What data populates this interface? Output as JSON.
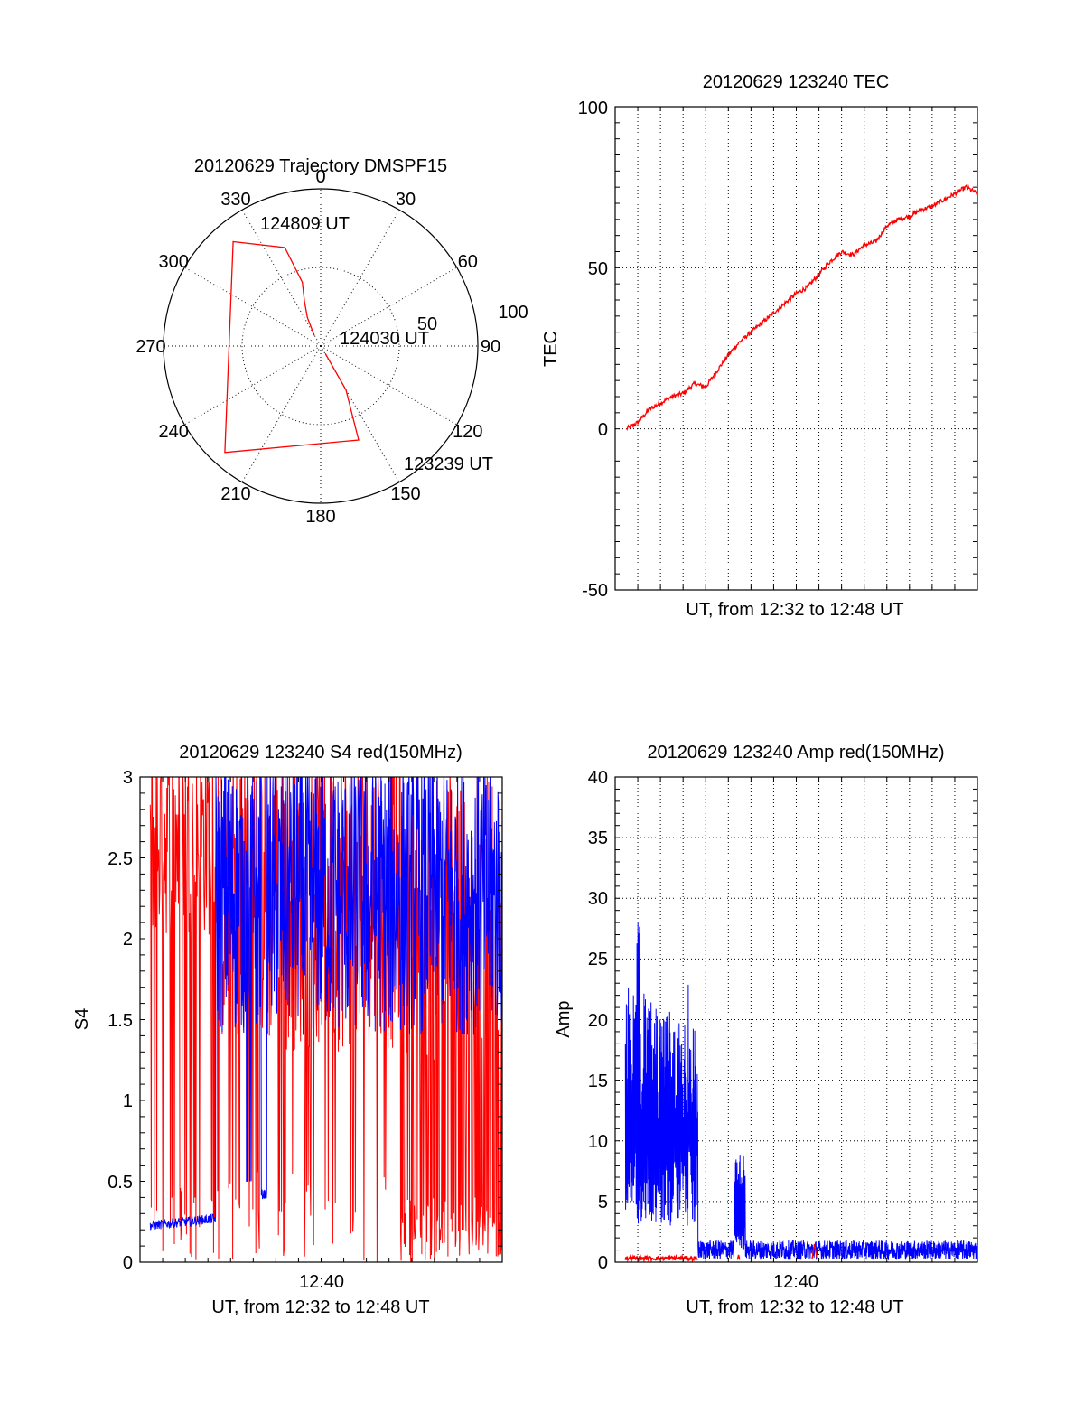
{
  "colors": {
    "red": "#ff0000",
    "blue": "#0000ff",
    "axis": "#000000"
  },
  "chart_data": [
    {
      "id": "trajectory",
      "type": "scatter",
      "polar": true,
      "title": "20120629 Trajectory DMSPF15",
      "angle_ticks": [
        "0",
        "30",
        "60",
        "90",
        "120",
        "150",
        "180",
        "210",
        "240",
        "270",
        "300",
        "330"
      ],
      "radius_ticks": [
        "50",
        "100"
      ],
      "rlim": [
        0,
        100
      ],
      "series": [
        {
          "color": "#ff0000",
          "points_az_el": [
            [
              329,
              83
            ],
            [
              335,
              72
            ],
            [
              340,
              63
            ],
            [
              344,
              52
            ],
            [
              340,
              30
            ],
            [
              320,
              12
            ],
            [
              222,
              8
            ],
            [
              158,
              32
            ],
            [
              150,
              61
            ],
            [
              148,
              85
            ]
          ]
        }
      ],
      "annotations": [
        "124809 UT",
        "124030 UT",
        "123239 UT"
      ]
    },
    {
      "id": "tec",
      "type": "line",
      "title": "20120629 123240 TEC",
      "xlabel": "UT, from 12:32 to 12:48 UT",
      "ylabel": "TEC",
      "xlim_minutes": [
        0,
        16
      ],
      "ylim": [
        -50,
        100
      ],
      "yticks": [
        "100",
        "50",
        "0",
        "-50"
      ],
      "grid": true,
      "series": [
        {
          "color": "#ff0000",
          "x": [
            0.5,
            1.0,
            1.5,
            2.0,
            2.5,
            3.0,
            3.5,
            4.0,
            4.5,
            5.0,
            5.5,
            6.0,
            6.5,
            7.0,
            7.5,
            8.0,
            8.5,
            9.0,
            9.5,
            10.0,
            10.5,
            11.0,
            11.5,
            12.0,
            12.5,
            13.0,
            13.5,
            14.0,
            14.5,
            15.0,
            15.5,
            16.0
          ],
          "y": [
            0,
            2,
            6,
            8,
            10,
            11,
            14,
            13,
            18,
            23,
            27,
            30,
            33,
            36,
            39,
            42,
            44,
            48,
            52,
            55,
            54,
            57,
            58,
            63,
            65,
            66,
            68,
            69,
            71,
            73,
            75,
            73
          ]
        }
      ]
    },
    {
      "id": "s4",
      "type": "line",
      "title": "20120629 123240 S4 red(150MHz)",
      "xlabel": "UT, from 12:32 to 12:48 UT",
      "ylabel": "S4",
      "xlim_minutes": [
        0,
        16
      ],
      "ylim": [
        0,
        3
      ],
      "yticks": [
        "3",
        "2.5",
        "2",
        "1.5",
        "1",
        "0.5",
        "0"
      ],
      "xtick_label": "12:40",
      "series": [
        {
          "color": "#0000ff",
          "note_values": "baseline ~0.2-0.3 until 12:35:10, then fluctuating 1.4-3 (clipped at 3)",
          "x": [
            0.5,
            1.5,
            2.5,
            3.3,
            3.4,
            4.5,
            5.0,
            5.5,
            9.0,
            16.0
          ],
          "y": [
            0.22,
            0.25,
            0.26,
            0.28,
            1.5,
            2.2,
            0.45,
            2.0,
            1.0,
            2.3
          ]
        },
        {
          "color": "#ff0000",
          "note_values": "spiky between 0 and 3",
          "x": [
            0.5,
            2.0,
            3.0,
            6.0,
            9.0,
            12.0,
            16.0
          ],
          "y": [
            3.0,
            2.1,
            2.4,
            0.0,
            1.6,
            0.5,
            1.8
          ]
        }
      ]
    },
    {
      "id": "amp",
      "type": "line",
      "title": "20120629 123240 Amp red(150MHz)",
      "xlabel": "UT, from 12:32 to 12:48 UT",
      "ylabel": "Amp",
      "xlim_minutes": [
        0,
        16
      ],
      "ylim": [
        0,
        40
      ],
      "yticks": [
        "40",
        "35",
        "30",
        "25",
        "20",
        "15",
        "10",
        "5",
        "0"
      ],
      "xtick_label": "12:40",
      "grid": true,
      "series": [
        {
          "color": "#0000ff",
          "note_values": "dense noise 3-28 until ~12:35:40, then ~0.5-1.5; burst to ~9 near 12:37:30",
          "x": [
            0.5,
            1.0,
            2.0,
            3.0,
            3.6,
            3.7,
            5.3,
            5.5,
            5.7,
            8.0,
            12.0,
            16.0
          ],
          "y": [
            14,
            28,
            18,
            14,
            16,
            1.0,
            8.8,
            9.0,
            1.0,
            0.8,
            1.0,
            1.2
          ]
        },
        {
          "color": "#ff0000",
          "x": [
            0.5,
            3.6,
            5.4,
            8.8,
            16.0
          ],
          "y": [
            0.3,
            0.3,
            0.4,
            1.5,
            0.5
          ]
        }
      ]
    }
  ]
}
